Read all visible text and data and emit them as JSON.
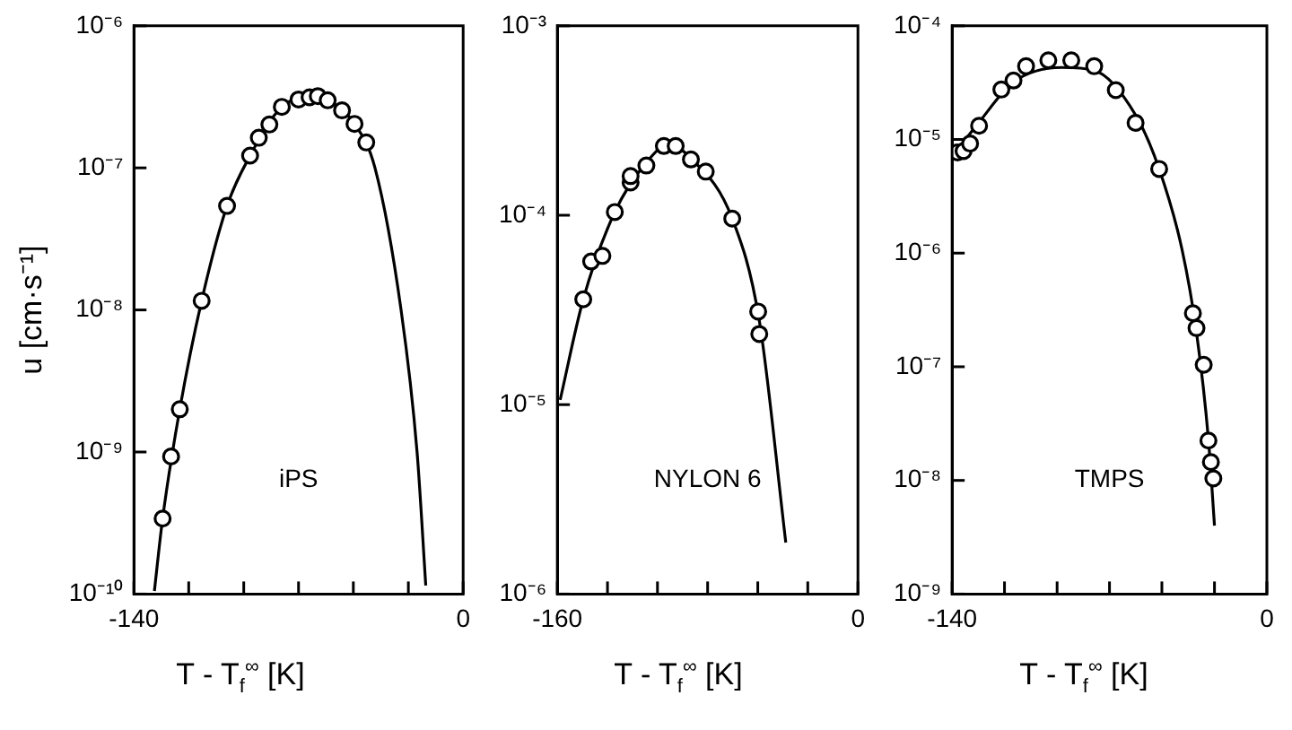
{
  "chart_data": [
    {
      "type": "scatter",
      "ylabel": "u [cm·s⁻¹]",
      "xlabel": "T - T$_{f}$$^{∞}$ [K]",
      "annotations": [
        "iPS"
      ],
      "log": "y",
      "marker": "circle",
      "xlim": [
        -140,
        0
      ],
      "xticks": [
        -140,
        {
          "value": -116.7,
          "label": null
        },
        {
          "value": -93.3,
          "label": null
        },
        {
          "value": -70,
          "label": null
        },
        {
          "value": -46.7,
          "label": null
        },
        {
          "value": -23.3,
          "label": null
        },
        0
      ],
      "ylim": [
        1e-10,
        1e-06
      ],
      "yticks": [
        {
          "value": 1e-10,
          "label": "10⁻¹⁰"
        },
        {
          "value": 1e-09,
          "label": "10⁻⁹"
        },
        {
          "value": 1e-08,
          "label": "10⁻⁸"
        },
        {
          "value": 1e-07,
          "label": "10⁻⁷"
        },
        {
          "value": 1e-06,
          "label": "10⁻⁶"
        }
      ],
      "series": [
        {
          "type": "scatter",
          "color": "#000000",
          "x": [
            -127.8,
            -124.2,
            -120.5,
            -111.2,
            -100.4,
            -90.6,
            -86.9,
            -82.4,
            -77.1,
            -70,
            -65.3,
            -61.8,
            -57.6,
            -51.5,
            -46.2,
            -41.2
          ],
          "values": [
            3.4e-10,
            9.3e-10,
            2e-09,
            1.16e-08,
            5.4e-08,
            1.22e-07,
            1.63e-07,
            2.02e-07,
            2.69e-07,
            3.03e-07,
            3.14e-07,
            3.2e-07,
            2.99e-07,
            2.54e-07,
            2.04e-07,
            1.51e-07
          ]
        },
        {
          "type": "line",
          "marker": "none",
          "line_style": "solid",
          "color": "#000000",
          "x": [
            -131.3,
            -127.8,
            -120.5,
            -111.2,
            -100.4,
            -90.6,
            -77.1,
            -65.3,
            -57.6,
            -46.2,
            -37.5,
            -26.4,
            -19.6,
            -15.9
          ],
          "values": [
            1.05e-10,
            3.4e-10,
            2e-09,
            1.16e-08,
            5.4e-08,
            1.22e-07,
            2.69e-07,
            3.14e-07,
            2.99e-07,
            2.04e-07,
            1e-07,
            1e-08,
            1e-09,
            1.15e-10
          ]
        }
      ]
    },
    {
      "type": "scatter",
      "xlabel": "T - T$_{f}$$^{∞}$ [K]",
      "annotations": [
        "NYLON 6"
      ],
      "log": "y",
      "marker": "circle",
      "xlim": [
        -160,
        0
      ],
      "xticks": [
        -160,
        {
          "value": -133.3,
          "label": null
        },
        {
          "value": -106.7,
          "label": null
        },
        {
          "value": -80,
          "label": null
        },
        {
          "value": -53.3,
          "label": null
        },
        {
          "value": -26.7,
          "label": null
        },
        0
      ],
      "ylim": [
        1e-06,
        0.001
      ],
      "yticks": [
        {
          "value": 1e-06,
          "label": "10⁻⁶"
        },
        {
          "value": 1e-05,
          "label": "10⁻⁵"
        },
        {
          "value": 0.0001,
          "label": "10⁻⁴"
        },
        {
          "value": 0.001,
          "label": "10⁻³"
        }
      ],
      "series": [
        {
          "type": "scatter",
          "color": "#000000",
          "x": [
            -146.2,
            -142.0,
            -136.0,
            -129.4,
            -121.0,
            -121.0,
            -112.6,
            -103.3,
            -97.0,
            -88.9,
            -81.0,
            -66.9,
            -53.1,
            -52.5
          ],
          "values": [
            3.6e-05,
            5.7e-05,
            6.1e-05,
            0.000104,
            0.000149,
            0.000161,
            0.000183,
            0.000232,
            0.000232,
            0.000197,
            0.00017,
            9.6e-05,
            3.1e-05,
            2.36e-05
          ]
        },
        {
          "type": "line",
          "marker": "none",
          "line_style": "solid",
          "color": "#000000",
          "x": [
            -158.5,
            -146.2,
            -129.4,
            -112.6,
            -100.6,
            -88.9,
            -66.9,
            -52.5,
            -38.4
          ],
          "values": [
            1.06e-05,
            3.6e-05,
            0.000104,
            0.00019,
            0.000237,
            0.0002,
            9.6e-05,
            2.78e-05,
            1.87e-06
          ]
        }
      ]
    },
    {
      "type": "scatter",
      "xlabel": "T - T$_{f}$$^{∞}$ [K]",
      "annotations": [
        "TMPS"
      ],
      "log": "y",
      "marker": "circle",
      "xlim": [
        -140,
        0
      ],
      "xticks": [
        -140,
        {
          "value": -116.7,
          "label": null
        },
        {
          "value": -93.3,
          "label": null
        },
        {
          "value": -70,
          "label": null
        },
        {
          "value": -46.7,
          "label": null
        },
        {
          "value": -23.3,
          "label": null
        },
        0
      ],
      "ylim": [
        1e-09,
        0.0001
      ],
      "yticks": [
        {
          "value": 1e-09,
          "label": "10⁻⁹"
        },
        {
          "value": 1e-08,
          "label": "10⁻⁸"
        },
        {
          "value": 1e-07,
          "label": "10⁻⁷"
        },
        {
          "value": 1e-06,
          "label": "10⁻⁶"
        },
        {
          "value": 1e-05,
          "label": "10⁻⁵"
        },
        {
          "value": 0.0001,
          "label": "10⁻⁴"
        }
      ],
      "series": [
        {
          "type": "scatter",
          "color": "#000000",
          "x": [
            -137.6,
            -134.9,
            -132.0,
            -128.0,
            -118.1,
            -112.7,
            -107.1,
            -97.2,
            -87.0,
            -76.8,
            -67.2,
            -58.4,
            -47.9,
            -32.9,
            -31.3,
            -28.1,
            -26.0,
            -24.9,
            -23.8
          ],
          "values": [
            7.7e-06,
            7.9e-06,
            9.2e-06,
            1.32e-05,
            2.75e-05,
            3.3e-05,
            4.41e-05,
            4.97e-05,
            4.97e-05,
            4.41e-05,
            2.72e-05,
            1.4e-05,
            5.5e-06,
            2.96e-07,
            2.19e-07,
            1.04e-07,
            2.24e-08,
            1.45e-08,
            1.04e-08
          ]
        },
        {
          "type": "line",
          "marker": "none",
          "line_style": "solid",
          "color": "#000000",
          "x": [
            -140,
            -128,
            -112.7,
            -91.3,
            -76.8,
            -58.4,
            -47.9,
            -37.8,
            -31.3,
            -26.0,
            -23.3
          ],
          "values": [
            7.05e-06,
            1.42e-05,
            3.2e-05,
            4.3e-05,
            4.05e-05,
            1.64e-05,
            5.5e-06,
            1.09e-06,
            2e-07,
            2.3e-08,
            4e-09
          ]
        }
      ]
    }
  ]
}
